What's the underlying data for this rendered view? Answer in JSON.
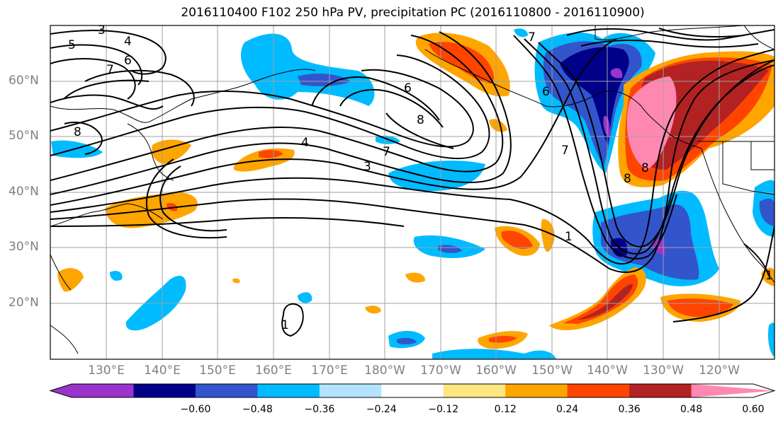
{
  "title": "2016110400 F102 250 hPa PV, precipitation PC (2016110800 - 2016110900)",
  "lat_labels": [
    {
      "text": "60°N",
      "lat": 60
    },
    {
      "text": "50°N",
      "lat": 50
    },
    {
      "text": "40°N",
      "lat": 40
    },
    {
      "text": "30°N",
      "lat": 30
    },
    {
      "text": "20°N",
      "lat": 20
    }
  ],
  "lon_labels": [
    {
      "text": "130°E",
      "lon": 130
    },
    {
      "text": "140°E",
      "lon": 140
    },
    {
      "text": "150°E",
      "lon": 150
    },
    {
      "text": "160°E",
      "lon": 160
    },
    {
      "text": "170°E",
      "lon": 170
    },
    {
      "text": "180°W",
      "lon": 180
    },
    {
      "text": "170°W",
      "lon": 190
    },
    {
      "text": "160°W",
      "lon": 200
    },
    {
      "text": "150°W",
      "lon": 210
    },
    {
      "text": "140°W",
      "lon": 220
    },
    {
      "text": "130°W",
      "lon": 230
    },
    {
      "text": "120°W",
      "lon": 240
    }
  ],
  "colorbar": {
    "colors": [
      "#9933cc",
      "#000088",
      "#3355cc",
      "#00bbff",
      "#b3e3ff",
      "#ffffff",
      "#ffe680",
      "#ffa500",
      "#ff4400",
      "#b22222",
      "#ff88b0"
    ],
    "ticks": [
      "−0.60",
      "−0.48",
      "−0.36",
      "−0.24",
      "−0.12",
      "0.12",
      "0.24",
      "0.36",
      "0.48",
      "0.60"
    ]
  },
  "contour_labels": [
    "3",
    "4",
    "5",
    "6",
    "7",
    "6",
    "7",
    "8",
    "8",
    "4",
    "7",
    "3",
    "6",
    "8",
    "7",
    "1",
    "8",
    "1",
    "1"
  ]
}
